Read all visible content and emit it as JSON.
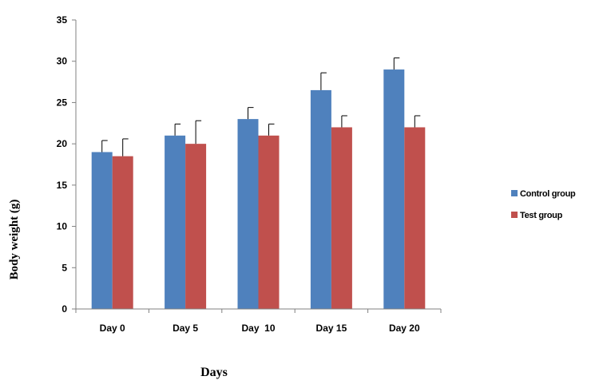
{
  "chart_data": {
    "type": "bar",
    "categories": [
      "Day 0",
      "Day 5",
      "Day  10",
      "Day 15",
      "Day 20"
    ],
    "series": [
      {
        "name": "Control group",
        "color": "#4f81bd",
        "values": [
          19,
          21,
          23,
          26.5,
          29
        ],
        "errors": [
          1.4,
          1.4,
          1.4,
          2.1,
          1.4
        ]
      },
      {
        "name": "Test group",
        "color": "#c0504d",
        "values": [
          18.5,
          20,
          21,
          22,
          22
        ],
        "errors": [
          2.1,
          2.8,
          1.4,
          1.4,
          1.4
        ]
      }
    ],
    "xlabel": "Days",
    "ylabel": "Body weight (g)",
    "ylim": [
      0,
      35
    ],
    "yticks": [
      0,
      5,
      10,
      15,
      20,
      25,
      30,
      35
    ],
    "grid": false,
    "legend_position": "right"
  }
}
